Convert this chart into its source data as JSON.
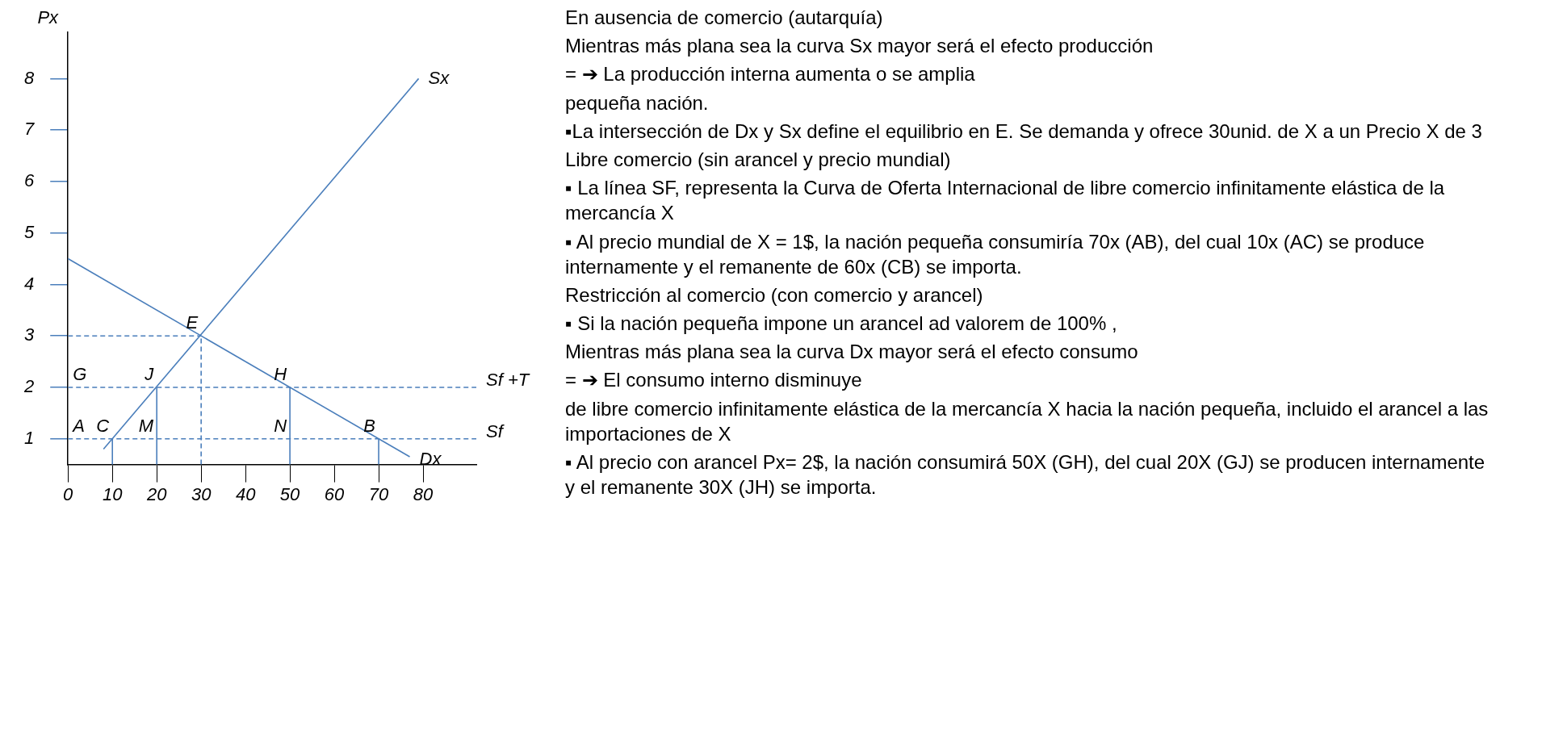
{
  "chart_data": [
    {
      "type": "line",
      "ylabel": "Px",
      "xlim": [
        0,
        92
      ],
      "ylim": [
        0.5,
        8.9
      ],
      "xticks": [
        0,
        10,
        20,
        30,
        40,
        50,
        60,
        70,
        80
      ],
      "yticks": [
        1,
        2,
        3,
        4,
        5,
        6,
        7,
        8
      ],
      "grid": false,
      "legend": false,
      "marker": "none",
      "series": [
        {
          "name": "Sx",
          "color": "#4a7ebb",
          "x": [
            8,
            79
          ],
          "values": [
            0.8,
            8
          ]
        },
        {
          "name": "Dx",
          "color": "#4a7ebb",
          "x": [
            0,
            77
          ],
          "values": [
            4.5,
            0.65
          ]
        },
        {
          "name": "Sf",
          "color": "#4a7ebb",
          "x": [
            0,
            92
          ],
          "values": [
            1,
            1
          ],
          "line_style": "dashed"
        },
        {
          "name": "Sf +T",
          "color": "#4a7ebb",
          "x": [
            0,
            92
          ],
          "values": [
            2,
            2
          ],
          "line_style": "dashed"
        },
        {
          "color": "#4a7ebb",
          "x": [
            0,
            30
          ],
          "values": [
            3,
            3
          ],
          "line_style": "dashed"
        },
        {
          "color": "#4a7ebb",
          "x": [
            30,
            30
          ],
          "values": [
            0.5,
            3
          ],
          "line_style": "dashed"
        },
        {
          "color": "#4a7ebb",
          "x": [
            10,
            10
          ],
          "values": [
            0.5,
            1
          ]
        },
        {
          "color": "#4a7ebb",
          "x": [
            20,
            20
          ],
          "values": [
            0.5,
            2
          ]
        },
        {
          "color": "#4a7ebb",
          "x": [
            50,
            50
          ],
          "values": [
            0.5,
            2
          ]
        },
        {
          "color": "#4a7ebb",
          "x": [
            70,
            70
          ],
          "values": [
            0.5,
            1
          ]
        }
      ],
      "annotations": [
        {
          "text": "E",
          "x": 30,
          "y": 3
        },
        {
          "text": "H",
          "x": 50,
          "y": 2
        },
        {
          "text": "J",
          "x": 20,
          "y": 2
        },
        {
          "text": "G",
          "x": 0,
          "y": 2
        },
        {
          "text": "A",
          "x": 0,
          "y": 1
        },
        {
          "text": "C",
          "x": 10,
          "y": 1
        },
        {
          "text": "M",
          "x": 20,
          "y": 1
        },
        {
          "text": "N",
          "x": 50,
          "y": 1
        },
        {
          "text": "B",
          "x": 70,
          "y": 1
        }
      ]
    },
    {
      "type": "other",
      "annotations": [
        "En ausencia de comercio (autarquía)",
        "Mientras más plana sea la curva Sx mayor será el efecto producción",
        "= ➔ La producción interna aumenta o se amplia",
        "pequeña nación.",
        "▪La intersección de Dx y Sx define el equilibrio en E. Se demanda y ofrece 30unid. de X a un Precio X de 3",
        "Libre comercio (sin arancel y precio mundial)",
        "▪ La línea SF, representa la Curva de Oferta Internacional de libre comercio infinitamente elástica de la mercancía X",
        "▪ Al precio mundial de X = 1$, la nación pequeña consumiría 70x (AB), del cual 10x (AC) se produce internamente y el remanente de 60x (CB) se importa.",
        "Restricción al comercio (con comercio y arancel)",
        "▪ Si la nación pequeña impone un arancel ad valorem de 100% ,",
        "Mientras más plana sea la curva Dx mayor será el efecto consumo",
        "= ➔ El consumo interno disminuye",
        "de libre comercio infinitamente elástica de la mercancía X hacia la nación pequeña, incluido el arancel a las importaciones de X",
        "▪ Al precio con arancel Px= 2$, la nación consumirá 50X (GH), del cual 20X (GJ) se producen internamente y el remanente 30X (JH) se importa."
      ]
    }
  ]
}
